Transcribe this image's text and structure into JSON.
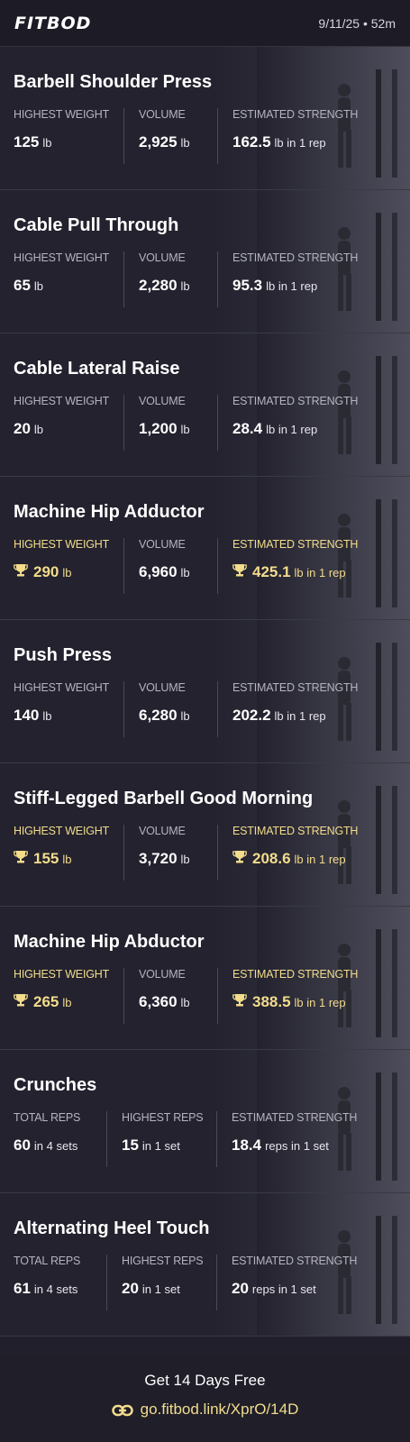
{
  "header": {
    "brand": "FITBOD",
    "date_duration": "9/11/25 • 52m"
  },
  "accent_color": "#f3dc8c",
  "exercises": [
    {
      "name": "Barbell Shoulder Press",
      "stats": [
        {
          "label": "HIGHEST WEIGHT",
          "value": "125",
          "unit": "lb",
          "pr": false
        },
        {
          "label": "VOLUME",
          "value": "2,925",
          "unit": "lb",
          "pr": false
        },
        {
          "label": "ESTIMATED STRENGTH",
          "value": "162.5",
          "unit": "lb in 1 rep",
          "pr": false
        }
      ]
    },
    {
      "name": "Cable Pull Through",
      "stats": [
        {
          "label": "HIGHEST WEIGHT",
          "value": "65",
          "unit": "lb",
          "pr": false
        },
        {
          "label": "VOLUME",
          "value": "2,280",
          "unit": "lb",
          "pr": false
        },
        {
          "label": "ESTIMATED STRENGTH",
          "value": "95.3",
          "unit": "lb in 1 rep",
          "pr": false
        }
      ]
    },
    {
      "name": "Cable Lateral Raise",
      "stats": [
        {
          "label": "HIGHEST WEIGHT",
          "value": "20",
          "unit": "lb",
          "pr": false
        },
        {
          "label": "VOLUME",
          "value": "1,200",
          "unit": "lb",
          "pr": false
        },
        {
          "label": "ESTIMATED STRENGTH",
          "value": "28.4",
          "unit": "lb in 1 rep",
          "pr": false
        }
      ]
    },
    {
      "name": "Machine Hip Adductor",
      "stats": [
        {
          "label": "HIGHEST WEIGHT",
          "value": "290",
          "unit": "lb",
          "pr": true
        },
        {
          "label": "VOLUME",
          "value": "6,960",
          "unit": "lb",
          "pr": false
        },
        {
          "label": "ESTIMATED STRENGTH",
          "value": "425.1",
          "unit": "lb in 1 rep",
          "pr": true
        }
      ]
    },
    {
      "name": "Push Press",
      "stats": [
        {
          "label": "HIGHEST WEIGHT",
          "value": "140",
          "unit": "lb",
          "pr": false
        },
        {
          "label": "VOLUME",
          "value": "6,280",
          "unit": "lb",
          "pr": false
        },
        {
          "label": "ESTIMATED STRENGTH",
          "value": "202.2",
          "unit": "lb in 1 rep",
          "pr": false
        }
      ]
    },
    {
      "name": "Stiff-Legged Barbell Good Morning",
      "stats": [
        {
          "label": "HIGHEST WEIGHT",
          "value": "155",
          "unit": "lb",
          "pr": true
        },
        {
          "label": "VOLUME",
          "value": "3,720",
          "unit": "lb",
          "pr": false
        },
        {
          "label": "ESTIMATED STRENGTH",
          "value": "208.6",
          "unit": "lb in 1 rep",
          "pr": true
        }
      ]
    },
    {
      "name": "Machine Hip Abductor",
      "stats": [
        {
          "label": "HIGHEST WEIGHT",
          "value": "265",
          "unit": "lb",
          "pr": true
        },
        {
          "label": "VOLUME",
          "value": "6,360",
          "unit": "lb",
          "pr": false
        },
        {
          "label": "ESTIMATED STRENGTH",
          "value": "388.5",
          "unit": "lb in 1 rep",
          "pr": true
        }
      ]
    },
    {
      "name": "Crunches",
      "stats": [
        {
          "label": "TOTAL REPS",
          "value": "60",
          "unit": "in 4 sets",
          "pr": false
        },
        {
          "label": "HIGHEST REPS",
          "value": "15",
          "unit": "in 1 set",
          "pr": false
        },
        {
          "label": "ESTIMATED STRENGTH",
          "value": "18.4",
          "unit": "reps in 1 set",
          "pr": false
        }
      ]
    },
    {
      "name": "Alternating Heel Touch",
      "stats": [
        {
          "label": "TOTAL REPS",
          "value": "61",
          "unit": "in 4 sets",
          "pr": false
        },
        {
          "label": "HIGHEST REPS",
          "value": "20",
          "unit": "in 1 set",
          "pr": false
        },
        {
          "label": "ESTIMATED STRENGTH",
          "value": "20",
          "unit": "reps in 1 set",
          "pr": false
        }
      ]
    }
  ],
  "footer": {
    "promo": "Get 14 Days Free",
    "link": "go.fitbod.link/XprO/14D",
    "link_icon": "link-icon"
  }
}
